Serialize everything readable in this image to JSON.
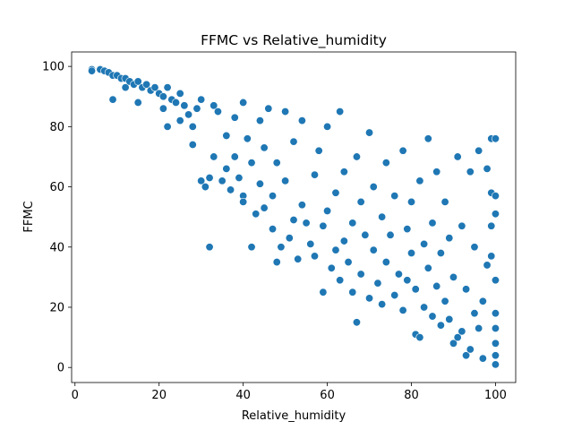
{
  "chart_data": {
    "type": "scatter",
    "title": "FFMC vs Relative_humidity",
    "xlabel": "Relative_humidity",
    "ylabel": "FFMC",
    "xlim": [
      -0.8,
      104.8
    ],
    "ylim": [
      -5.0,
      104.8
    ],
    "xticks": [
      0,
      20,
      40,
      60,
      80,
      100
    ],
    "yticks": [
      0,
      20,
      40,
      60,
      80,
      100
    ],
    "grid": false,
    "legend": "none",
    "point_color": "#1f77b4",
    "series": [
      {
        "points": [
          [
            4,
            99
          ],
          [
            4,
            98.5
          ],
          [
            6,
            99
          ],
          [
            7,
            98.5
          ],
          [
            8,
            98
          ],
          [
            9,
            97
          ],
          [
            9,
            89
          ],
          [
            10,
            97
          ],
          [
            11,
            96
          ],
          [
            12,
            96
          ],
          [
            12,
            93
          ],
          [
            13,
            95
          ],
          [
            14,
            94
          ],
          [
            15,
            95
          ],
          [
            15,
            88
          ],
          [
            16,
            93
          ],
          [
            17,
            94
          ],
          [
            18,
            92
          ],
          [
            19,
            93
          ],
          [
            20,
            91
          ],
          [
            21,
            90
          ],
          [
            21,
            86
          ],
          [
            22,
            93
          ],
          [
            22,
            80
          ],
          [
            23,
            89
          ],
          [
            24,
            88
          ],
          [
            25,
            91
          ],
          [
            25,
            82
          ],
          [
            26,
            87
          ],
          [
            27,
            84
          ],
          [
            28,
            80
          ],
          [
            28,
            74
          ],
          [
            29,
            86
          ],
          [
            30,
            89
          ],
          [
            30,
            62
          ],
          [
            31,
            60
          ],
          [
            32,
            63
          ],
          [
            32,
            40
          ],
          [
            33,
            87
          ],
          [
            33,
            70
          ],
          [
            34,
            85
          ],
          [
            35,
            62
          ],
          [
            36,
            77
          ],
          [
            36,
            66
          ],
          [
            37,
            59
          ],
          [
            38,
            83
          ],
          [
            38,
            70
          ],
          [
            39,
            63
          ],
          [
            40,
            88
          ],
          [
            40,
            57
          ],
          [
            40,
            55
          ],
          [
            41,
            76
          ],
          [
            42,
            68
          ],
          [
            42,
            40
          ],
          [
            43,
            51
          ],
          [
            44,
            82
          ],
          [
            44,
            61
          ],
          [
            45,
            73
          ],
          [
            45,
            53
          ],
          [
            46,
            86
          ],
          [
            47,
            57
          ],
          [
            47,
            46
          ],
          [
            48,
            35
          ],
          [
            48,
            68
          ],
          [
            49,
            40
          ],
          [
            50,
            85
          ],
          [
            50,
            62
          ],
          [
            51,
            43
          ],
          [
            52,
            49
          ],
          [
            52,
            75
          ],
          [
            53,
            36
          ],
          [
            54,
            54
          ],
          [
            54,
            82
          ],
          [
            55,
            48
          ],
          [
            56,
            41
          ],
          [
            57,
            64
          ],
          [
            57,
            37
          ],
          [
            58,
            72
          ],
          [
            59,
            25
          ],
          [
            59,
            47
          ],
          [
            60,
            80
          ],
          [
            60,
            52
          ],
          [
            61,
            33
          ],
          [
            62,
            39
          ],
          [
            62,
            58
          ],
          [
            63,
            85
          ],
          [
            63,
            29
          ],
          [
            64,
            42
          ],
          [
            64,
            65
          ],
          [
            65,
            35
          ],
          [
            66,
            48
          ],
          [
            66,
            25
          ],
          [
            67,
            15
          ],
          [
            67,
            70
          ],
          [
            68,
            31
          ],
          [
            68,
            55
          ],
          [
            69,
            44
          ],
          [
            70,
            78
          ],
          [
            70,
            23
          ],
          [
            71,
            39
          ],
          [
            71,
            60
          ],
          [
            72,
            28
          ],
          [
            73,
            50
          ],
          [
            73,
            21
          ],
          [
            74,
            35
          ],
          [
            74,
            68
          ],
          [
            75,
            44
          ],
          [
            76,
            24
          ],
          [
            76,
            57
          ],
          [
            77,
            31
          ],
          [
            78,
            19
          ],
          [
            78,
            72
          ],
          [
            79,
            46
          ],
          [
            79,
            29
          ],
          [
            80,
            38
          ],
          [
            80,
            55
          ],
          [
            81,
            11
          ],
          [
            81,
            26
          ],
          [
            82,
            10
          ],
          [
            82,
            62
          ],
          [
            83,
            41
          ],
          [
            83,
            20
          ],
          [
            84,
            33
          ],
          [
            84,
            76
          ],
          [
            85,
            17
          ],
          [
            85,
            48
          ],
          [
            86,
            27
          ],
          [
            86,
            65
          ],
          [
            87,
            38
          ],
          [
            87,
            14
          ],
          [
            88,
            22
          ],
          [
            88,
            55
          ],
          [
            89,
            16
          ],
          [
            89,
            43
          ],
          [
            90,
            8
          ],
          [
            90,
            30
          ],
          [
            91,
            70
          ],
          [
            91,
            10
          ],
          [
            92,
            12
          ],
          [
            92,
            47
          ],
          [
            93,
            4
          ],
          [
            93,
            26
          ],
          [
            94,
            65
          ],
          [
            94,
            6
          ],
          [
            95,
            18
          ],
          [
            95,
            40
          ],
          [
            96,
            13
          ],
          [
            96,
            72
          ],
          [
            97,
            3
          ],
          [
            97,
            22
          ],
          [
            98,
            34
          ],
          [
            98,
            66
          ],
          [
            99,
            76
          ],
          [
            99,
            58
          ],
          [
            99,
            47
          ],
          [
            99,
            37
          ],
          [
            100,
            76
          ],
          [
            100,
            57
          ],
          [
            100,
            51
          ],
          [
            100,
            29
          ],
          [
            100,
            18
          ],
          [
            100,
            13
          ],
          [
            100,
            8
          ],
          [
            100,
            4
          ],
          [
            100,
            1
          ]
        ]
      }
    ]
  }
}
